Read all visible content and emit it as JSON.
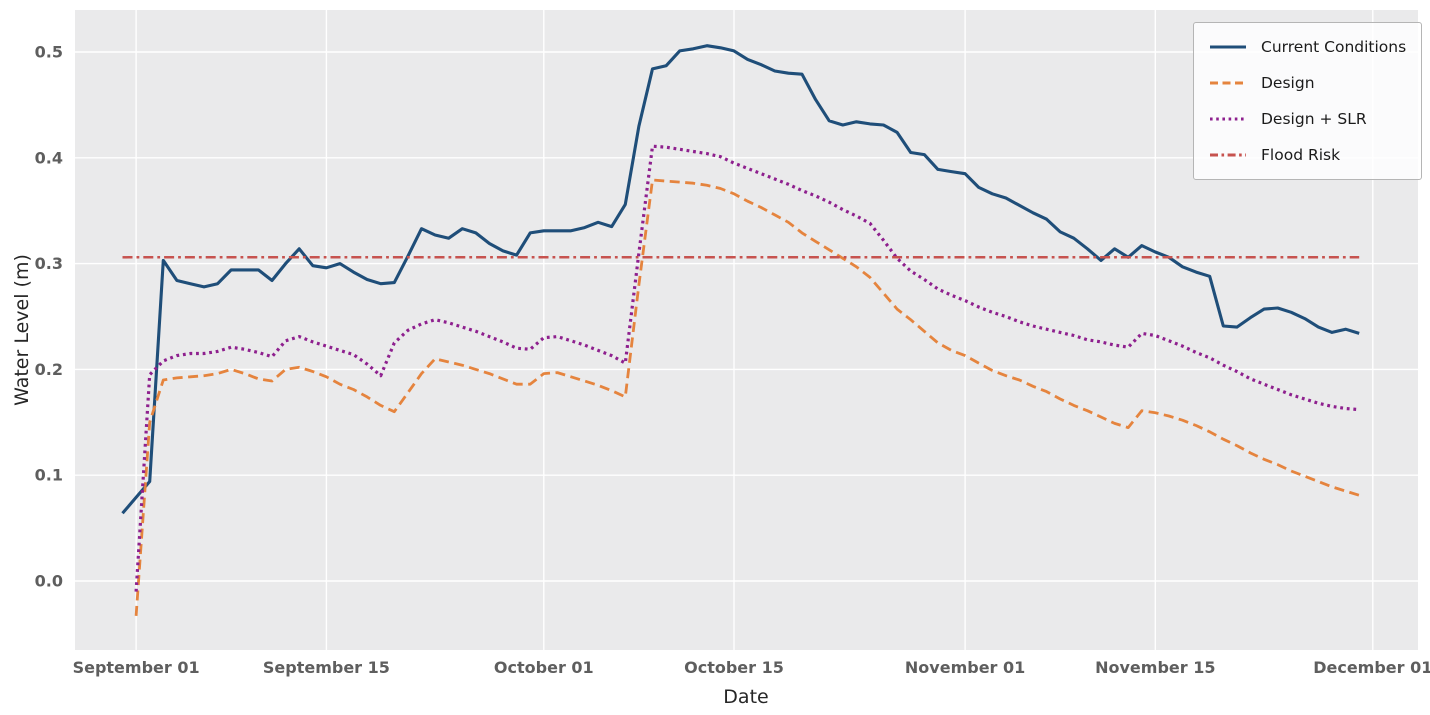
{
  "figure": {
    "plot_background": "#eaeaeb",
    "grid_color": "#ffffff",
    "tick_label_color": "#5e5e5e",
    "axis_label_color": "#262626",
    "legend_border_color": "#b5b5b5"
  },
  "chart_data": {
    "type": "line",
    "title": "",
    "xlabel": "Date",
    "ylabel": "Water Level (m)",
    "grid": true,
    "legend_position": "upper right",
    "x_tick_labels": [
      "September 01",
      "September 15",
      "October 01",
      "October 15",
      "November 01",
      "November 15",
      "December 01"
    ],
    "x_tick_day_index": [
      1,
      15,
      31,
      45,
      62,
      76,
      92
    ],
    "x_unit": "daily points, day index 0 = August 31",
    "y_tick_labels": [
      "0.0",
      "0.1",
      "0.2",
      "0.3",
      "0.4",
      "0.5"
    ],
    "y_tick_values": [
      0.0,
      0.1,
      0.2,
      0.3,
      0.4,
      0.5
    ],
    "ylim": [
      -0.065,
      0.54
    ],
    "flood_risk_level": 0.306,
    "series": [
      {
        "name": "Current Conditions",
        "color": "#1f4e79",
        "line_style": "solid",
        "start_day_index": 0,
        "values": [
          0.064,
          0.079,
          0.094,
          0.303,
          0.284,
          0.281,
          0.278,
          0.281,
          0.294,
          0.294,
          0.294,
          0.284,
          0.3,
          0.314,
          0.298,
          0.296,
          0.3,
          0.292,
          0.285,
          0.281,
          0.282,
          0.307,
          0.333,
          0.327,
          0.324,
          0.333,
          0.329,
          0.319,
          0.312,
          0.308,
          0.329,
          0.331,
          0.331,
          0.331,
          0.334,
          0.339,
          0.335,
          0.356,
          0.43,
          0.484,
          0.487,
          0.501,
          0.503,
          0.506,
          0.504,
          0.501,
          0.493,
          0.488,
          0.482,
          0.48,
          0.479,
          0.455,
          0.435,
          0.431,
          0.434,
          0.432,
          0.431,
          0.424,
          0.405,
          0.403,
          0.389,
          0.387,
          0.385,
          0.372,
          0.366,
          0.362,
          0.355,
          0.348,
          0.342,
          0.33,
          0.324,
          0.314,
          0.303,
          0.314,
          0.306,
          0.317,
          0.311,
          0.306,
          0.297,
          0.292,
          0.288,
          0.241,
          0.24,
          0.249,
          0.257,
          0.258,
          0.254,
          0.248,
          0.24,
          0.235,
          0.238,
          0.234
        ]
      },
      {
        "name": "Design",
        "color": "#e5843e",
        "line_style": "dashed",
        "start_day_index": 1,
        "values": [
          -0.033,
          0.15,
          0.19,
          0.192,
          0.193,
          0.194,
          0.196,
          0.2,
          0.196,
          0.191,
          0.189,
          0.2,
          0.202,
          0.198,
          0.193,
          0.186,
          0.181,
          0.174,
          0.166,
          0.16,
          0.178,
          0.196,
          0.21,
          0.207,
          0.204,
          0.2,
          0.196,
          0.191,
          0.186,
          0.186,
          0.196,
          0.197,
          0.193,
          0.189,
          0.185,
          0.18,
          0.174,
          0.28,
          0.379,
          0.378,
          0.377,
          0.376,
          0.374,
          0.371,
          0.366,
          0.359,
          0.353,
          0.346,
          0.339,
          0.329,
          0.321,
          0.313,
          0.305,
          0.297,
          0.287,
          0.272,
          0.257,
          0.247,
          0.236,
          0.225,
          0.218,
          0.213,
          0.206,
          0.199,
          0.194,
          0.19,
          0.184,
          0.179,
          0.172,
          0.166,
          0.161,
          0.155,
          0.149,
          0.145,
          0.161,
          0.159,
          0.156,
          0.152,
          0.147,
          0.141,
          0.134,
          0.128,
          0.121,
          0.115,
          0.11,
          0.104,
          0.099,
          0.094,
          0.089,
          0.085,
          0.081
        ]
      },
      {
        "name": "Design + SLR",
        "color": "#8e208e",
        "line_style": "dotted",
        "start_day_index": 1,
        "values": [
          -0.01,
          0.195,
          0.208,
          0.213,
          0.215,
          0.215,
          0.217,
          0.221,
          0.219,
          0.216,
          0.212,
          0.227,
          0.231,
          0.226,
          0.222,
          0.218,
          0.214,
          0.205,
          0.194,
          0.225,
          0.237,
          0.243,
          0.247,
          0.244,
          0.24,
          0.236,
          0.231,
          0.226,
          0.22,
          0.219,
          0.23,
          0.231,
          0.227,
          0.223,
          0.218,
          0.213,
          0.206,
          0.31,
          0.411,
          0.41,
          0.408,
          0.406,
          0.404,
          0.401,
          0.395,
          0.39,
          0.385,
          0.38,
          0.375,
          0.369,
          0.364,
          0.358,
          0.351,
          0.345,
          0.338,
          0.322,
          0.305,
          0.293,
          0.285,
          0.276,
          0.27,
          0.265,
          0.259,
          0.254,
          0.25,
          0.245,
          0.241,
          0.238,
          0.235,
          0.232,
          0.228,
          0.226,
          0.223,
          0.221,
          0.234,
          0.232,
          0.227,
          0.222,
          0.216,
          0.211,
          0.204,
          0.198,
          0.191,
          0.186,
          0.181,
          0.176,
          0.172,
          0.168,
          0.165,
          0.163,
          0.162
        ]
      },
      {
        "name": "Flood Risk",
        "color": "#c7534f",
        "line_style": "dashdot",
        "start_day_index": 0,
        "end_day_index": 91,
        "constant_value": 0.306
      }
    ]
  }
}
